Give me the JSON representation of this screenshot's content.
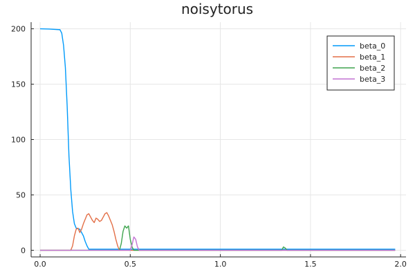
{
  "chart_data": {
    "type": "line",
    "title": "noisytorus",
    "xlabel": "",
    "ylabel": "",
    "xlim": [
      -0.05,
      2.03
    ],
    "ylim": [
      -6,
      206
    ],
    "xticks": [
      0.0,
      0.5,
      1.0,
      1.5,
      2.0
    ],
    "xtick_labels": [
      "0.0",
      "0.5",
      "1.0",
      "1.5",
      "2.0"
    ],
    "yticks": [
      0,
      50,
      100,
      150,
      200
    ],
    "ytick_labels": [
      "0",
      "50",
      "100",
      "150",
      "200"
    ],
    "grid": true,
    "legend_position": "top-right",
    "series": [
      {
        "name": "beta_0",
        "color": "#009AFA",
        "points": [
          [
            0.0,
            200
          ],
          [
            0.05,
            199.8
          ],
          [
            0.11,
            199.2
          ],
          [
            0.12,
            196
          ],
          [
            0.13,
            185
          ],
          [
            0.14,
            165
          ],
          [
            0.15,
            130
          ],
          [
            0.16,
            85
          ],
          [
            0.17,
            55
          ],
          [
            0.18,
            35
          ],
          [
            0.19,
            24
          ],
          [
            0.2,
            20
          ],
          [
            0.22,
            19
          ],
          [
            0.24,
            13
          ],
          [
            0.25,
            8
          ],
          [
            0.26,
            4
          ],
          [
            0.27,
            1
          ],
          [
            0.3,
            1
          ],
          [
            0.4,
            1
          ],
          [
            0.6,
            1
          ],
          [
            1.0,
            1
          ],
          [
            1.35,
            1
          ],
          [
            1.4,
            1
          ],
          [
            1.6,
            1
          ],
          [
            1.97,
            1
          ]
        ]
      },
      {
        "name": "beta_1",
        "color": "#E36F47",
        "points": [
          [
            0.0,
            0
          ],
          [
            0.17,
            0
          ],
          [
            0.18,
            4
          ],
          [
            0.19,
            13
          ],
          [
            0.2,
            19
          ],
          [
            0.21,
            20
          ],
          [
            0.22,
            16
          ],
          [
            0.23,
            19
          ],
          [
            0.24,
            24
          ],
          [
            0.25,
            28
          ],
          [
            0.26,
            32
          ],
          [
            0.27,
            33
          ],
          [
            0.28,
            30
          ],
          [
            0.29,
            27
          ],
          [
            0.3,
            25
          ],
          [
            0.31,
            29
          ],
          [
            0.32,
            28
          ],
          [
            0.33,
            26
          ],
          [
            0.34,
            27
          ],
          [
            0.35,
            30
          ],
          [
            0.36,
            33
          ],
          [
            0.37,
            34
          ],
          [
            0.38,
            31
          ],
          [
            0.39,
            27
          ],
          [
            0.4,
            23
          ],
          [
            0.41,
            17
          ],
          [
            0.42,
            10
          ],
          [
            0.43,
            4
          ],
          [
            0.44,
            0
          ],
          [
            0.5,
            0
          ],
          [
            1.97,
            0
          ]
        ]
      },
      {
        "name": "beta_2",
        "color": "#3EA44E",
        "points": [
          [
            0.0,
            0
          ],
          [
            0.44,
            0
          ],
          [
            0.45,
            6
          ],
          [
            0.46,
            17
          ],
          [
            0.47,
            22
          ],
          [
            0.48,
            20
          ],
          [
            0.49,
            22
          ],
          [
            0.5,
            10
          ],
          [
            0.51,
            3
          ],
          [
            0.52,
            0
          ],
          [
            1.34,
            0
          ],
          [
            1.35,
            3
          ],
          [
            1.36,
            2
          ],
          [
            1.37,
            0
          ],
          [
            1.97,
            0
          ]
        ]
      },
      {
        "name": "beta_3",
        "color": "#C271D2",
        "points": [
          [
            0.0,
            0
          ],
          [
            0.5,
            0
          ],
          [
            0.51,
            5
          ],
          [
            0.52,
            12
          ],
          [
            0.53,
            10
          ],
          [
            0.54,
            3
          ],
          [
            0.55,
            0
          ],
          [
            1.97,
            0
          ]
        ]
      }
    ]
  }
}
